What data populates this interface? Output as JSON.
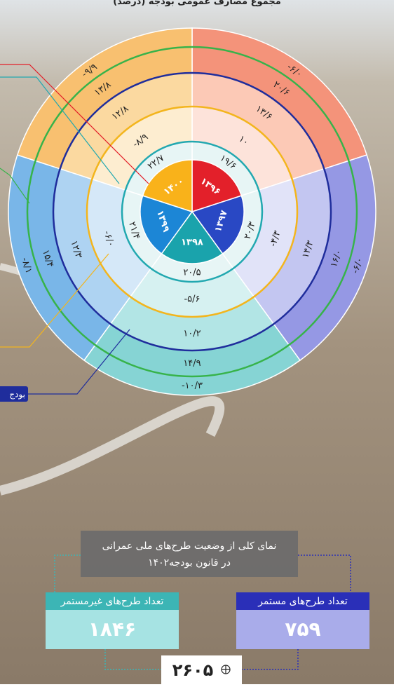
{
  "header": {
    "title": "مجموع مصارف عمومی بودجه (درصد)"
  },
  "chart": {
    "years": [
      "۱۳۹۶",
      "۱۳۹۷",
      "۱۳۹۸",
      "۱۳۹۹",
      "۱۴۰۰"
    ],
    "rings": [
      [
        "۱۹/۶",
        "۱۰",
        "۱۳/۶",
        "۲۰/۶",
        "-۶/۰"
      ],
      [
        "۲۰/۳",
        "-۴/۳",
        "۱۴/۳",
        "۱۶/۰",
        "-۶/۰"
      ],
      [
        "۲۰/۵",
        "-۵/۶",
        "۱۰/۲",
        "۱۴/۹",
        "-۱۰/۳"
      ],
      [
        "۲۱/۴",
        "-۶/۰",
        "۱۲/۳",
        "۱۵/۴",
        "-۸/۱"
      ],
      [
        "۲۲/۷",
        "-۸/۹",
        "۱۲/۸",
        "۱۳/۸",
        "-۹/۹"
      ]
    ]
  },
  "callout": "بودج",
  "summary": {
    "title_lines": [
      "نمای کلی از وضعیت طرح‌های ملی عمرانی",
      "در قانون بودجه۱۴۰۲"
    ],
    "noncontinuous": {
      "label": "تعداد طرح‌های غیرمستمر",
      "value": "۱۸۴۶"
    },
    "continuous": {
      "label": "تعداد طرح‌های مستمر",
      "value": "۷۵۹"
    },
    "total": "۲۶۰۵"
  }
}
